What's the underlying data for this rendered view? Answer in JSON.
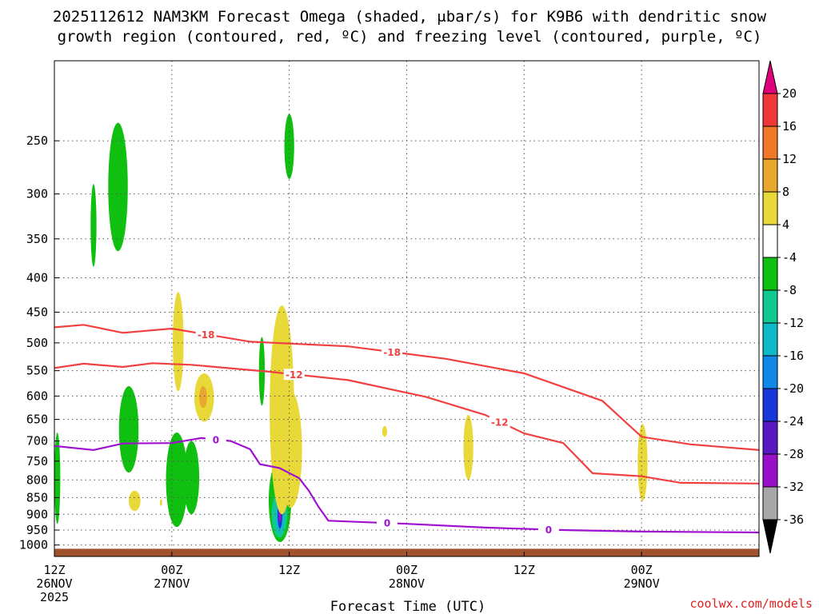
{
  "chart_data": {
    "type": "heatmap",
    "title_line1": "2025112612 NAM3KM Forecast Omega (shaded, μbar/s) for K9B6 with dendritic snow",
    "title_line2": "growth region (contoured, red, ºC) and freezing level (contoured, purple, ºC)",
    "xlabel": "Forecast Time (UTC)",
    "credit": "coolwx.com/models",
    "xlim_hours": [
      0,
      72
    ],
    "ylim_hPa": [
      1040,
      190
    ],
    "x_ticks": [
      {
        "hour": 0,
        "line1": "12Z",
        "line2": "26NOV",
        "line3": "2025"
      },
      {
        "hour": 12,
        "line1": "00Z",
        "line2": "27NOV",
        "line3": ""
      },
      {
        "hour": 24,
        "line1": "12Z",
        "line2": "",
        "line3": ""
      },
      {
        "hour": 36,
        "line1": "00Z",
        "line2": "28NOV",
        "line3": ""
      },
      {
        "hour": 48,
        "line1": "12Z",
        "line2": "",
        "line3": ""
      },
      {
        "hour": 60,
        "line1": "00Z",
        "line2": "29NOV",
        "line3": ""
      }
    ],
    "y_ticks": [
      "250",
      "300",
      "350",
      "400",
      "450",
      "500",
      "550",
      "600",
      "650",
      "700",
      "750",
      "800",
      "850",
      "900",
      "950",
      "1000"
    ],
    "colorbar": {
      "labels": [
        "20",
        "16",
        "12",
        "8",
        "4",
        "-4",
        "-8",
        "-12",
        "-16",
        "-20",
        "-24",
        "-28",
        "-32",
        "-36"
      ],
      "colors": [
        "#e0007a",
        "#f03838",
        "#f07828",
        "#e8a830",
        "#e8d838",
        "#ffffff",
        "#10c010",
        "#10c890",
        "#10b8c8",
        "#1088e8",
        "#1838d8",
        "#5818c0",
        "#9810c8",
        "#a8a8a8",
        "#000000"
      ]
    },
    "contours": [
      {
        "name": "dgz-minus18",
        "color": "#f04040",
        "label": "-18",
        "points": [
          [
            0,
            474
          ],
          [
            3,
            470
          ],
          [
            7,
            483
          ],
          [
            12,
            476
          ],
          [
            20,
            498
          ],
          [
            30,
            506
          ],
          [
            40,
            528
          ],
          [
            48,
            555
          ],
          [
            56,
            610
          ],
          [
            60,
            690
          ],
          [
            65,
            708
          ],
          [
            72,
            722
          ]
        ],
        "label_hours": [
          15.5,
          34.5
        ]
      },
      {
        "name": "dgz-minus12",
        "color": "#f04040",
        "label": "-12",
        "points": [
          [
            0,
            545
          ],
          [
            3,
            537
          ],
          [
            7,
            543
          ],
          [
            10,
            536
          ],
          [
            14,
            539
          ],
          [
            22,
            552
          ],
          [
            30,
            568
          ],
          [
            38,
            602
          ],
          [
            44,
            640
          ],
          [
            48,
            682
          ],
          [
            52,
            705
          ],
          [
            55,
            782
          ],
          [
            60,
            790
          ],
          [
            64,
            808
          ],
          [
            72,
            810
          ]
        ],
        "label_hours": [
          24.5,
          45.5
        ]
      },
      {
        "name": "freezing-level",
        "color": "#a010d0",
        "label": "0",
        "points": [
          [
            0,
            712
          ],
          [
            4,
            722
          ],
          [
            7,
            706
          ],
          [
            12,
            705
          ],
          [
            15,
            693
          ],
          [
            18,
            700
          ],
          [
            20,
            720
          ],
          [
            21,
            758
          ],
          [
            23,
            768
          ],
          [
            25,
            795
          ],
          [
            26,
            830
          ],
          [
            27,
            878
          ],
          [
            28,
            920
          ],
          [
            36,
            930
          ],
          [
            44,
            942
          ],
          [
            52,
            950
          ],
          [
            60,
            955
          ],
          [
            72,
            958
          ]
        ],
        "label_hours": [
          16.5,
          34,
          50.5
        ]
      }
    ],
    "shaded_regions": [
      {
        "name": "green-250-330",
        "color": "#10c010",
        "value": -6,
        "t": [
          5.5,
          7.5
        ],
        "p": [
          235,
          365
        ]
      },
      {
        "name": "green-300-380",
        "color": "#10c010",
        "value": -6,
        "t": [
          3.7,
          4.3
        ],
        "p": [
          290,
          385
        ]
      },
      {
        "name": "green-upper-12z",
        "color": "#10c010",
        "value": -6,
        "t": [
          23.5,
          24.5
        ],
        "p": [
          228,
          285
        ]
      },
      {
        "name": "green-lower-left",
        "color": "#10c010",
        "value": -6,
        "t": [
          0,
          0.6
        ],
        "p": [
          680,
          930
        ]
      },
      {
        "name": "green-0630",
        "color": "#10c010",
        "value": -6,
        "t": [
          6.6,
          8.6
        ],
        "p": [
          580,
          780
        ]
      },
      {
        "name": "green-00z-a",
        "color": "#10c010",
        "value": -6,
        "t": [
          11.4,
          13.6
        ],
        "p": [
          680,
          940
        ]
      },
      {
        "name": "green-00z-b",
        "color": "#10c010",
        "value": -6,
        "t": [
          13.2,
          14.8
        ],
        "p": [
          700,
          900
        ]
      },
      {
        "name": "green-11z-column",
        "color": "#10c010",
        "value": -6,
        "t": [
          20.9,
          21.5
        ],
        "p": [
          490,
          620
        ]
      },
      {
        "name": "green-11z-bottom",
        "color": "#10c010",
        "value": -6,
        "t": [
          21.9,
          24.2
        ],
        "p": [
          745,
          990
        ]
      },
      {
        "name": "teal-11z",
        "color": "#10c890",
        "value": -10,
        "t": [
          22.2,
          23.8
        ],
        "p": [
          830,
          975
        ]
      },
      {
        "name": "cyan-11z",
        "color": "#10b8c8",
        "value": -14,
        "t": [
          22.6,
          23.5
        ],
        "p": [
          845,
          960
        ]
      },
      {
        "name": "blue-11z",
        "color": "#1838d8",
        "value": -22,
        "t": [
          22.8,
          23.3
        ],
        "p": [
          860,
          945
        ]
      },
      {
        "name": "purple-11z",
        "color": "#9810c8",
        "value": -30,
        "t": [
          22.9,
          23.2
        ],
        "p": [
          880,
          925
        ]
      },
      {
        "name": "yellow-1130",
        "color": "#e8d838",
        "value": 5,
        "t": [
          22.0,
          24.5
        ],
        "p": [
          440,
          900
        ]
      },
      {
        "name": "yellow-1130-b",
        "color": "#e8d838",
        "value": 5,
        "t": [
          23.0,
          25.3
        ],
        "p": [
          590,
          880
        ]
      },
      {
        "name": "yellow-2230",
        "color": "#e8d838",
        "value": 5,
        "t": [
          12.1,
          13.2
        ],
        "p": [
          420,
          590
        ]
      },
      {
        "name": "yellow-0130",
        "color": "#e8d838",
        "value": 5,
        "t": [
          14.3,
          16.3
        ],
        "p": [
          555,
          655
        ]
      },
      {
        "name": "orange-0130",
        "color": "#e8a830",
        "value": 9,
        "t": [
          14.8,
          15.6
        ],
        "p": [
          580,
          625
        ]
      },
      {
        "name": "yellow-0730",
        "color": "#e8d838",
        "value": 5,
        "t": [
          7.6,
          8.8
        ],
        "p": [
          830,
          890
        ]
      },
      {
        "name": "yellow-0900",
        "color": "#e8d838",
        "value": 5,
        "t": [
          10.8,
          11.0
        ],
        "p": [
          855,
          875
        ]
      },
      {
        "name": "yellow-0330z",
        "color": "#e8d838",
        "value": 5,
        "t": [
          33.5,
          34.0
        ],
        "p": [
          665,
          690
        ]
      },
      {
        "name": "yellow-06z",
        "color": "#e8d838",
        "value": 5,
        "t": [
          41.8,
          42.8
        ],
        "p": [
          640,
          800
        ]
      },
      {
        "name": "yellow-20z",
        "color": "#e8d838",
        "value": 5,
        "t": [
          59.6,
          60.6
        ],
        "p": [
          660,
          860
        ]
      }
    ],
    "terrain_top_hPa": 1013,
    "terrain_color": "#a0522d"
  }
}
